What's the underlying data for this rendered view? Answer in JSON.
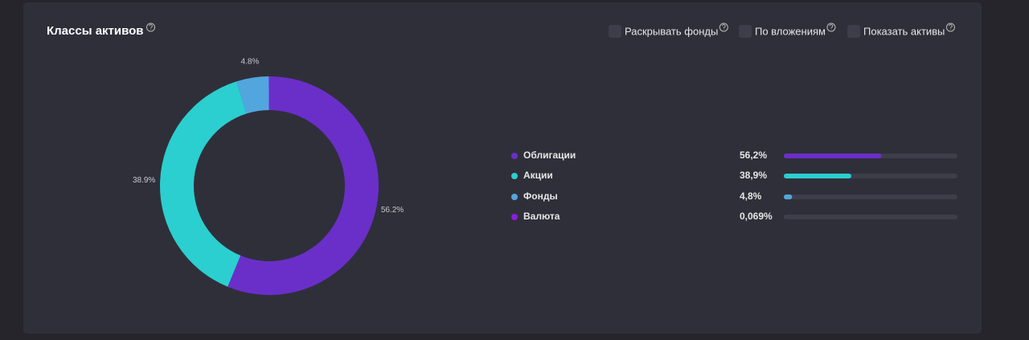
{
  "options": [
    "Раскрывать фонды",
    "По вложениям",
    "Показать активы"
  ],
  "chart_data": {
    "type": "donut",
    "title": "Классы активов",
    "categories": [
      "Облигации",
      "Акции",
      "Фонды",
      "Валюта"
    ],
    "values": [
      56.2,
      38.9,
      4.8,
      0.069
    ],
    "value_labels": [
      "56.2%",
      "38.9%",
      "4.8%",
      null
    ],
    "legend_value_labels": [
      "56,2%",
      "38,9%",
      "4,8%",
      "0,069%"
    ],
    "colors": [
      "#6a2fc8",
      "#2bcfcf",
      "#52a6de",
      "#8b1ee0"
    ]
  }
}
